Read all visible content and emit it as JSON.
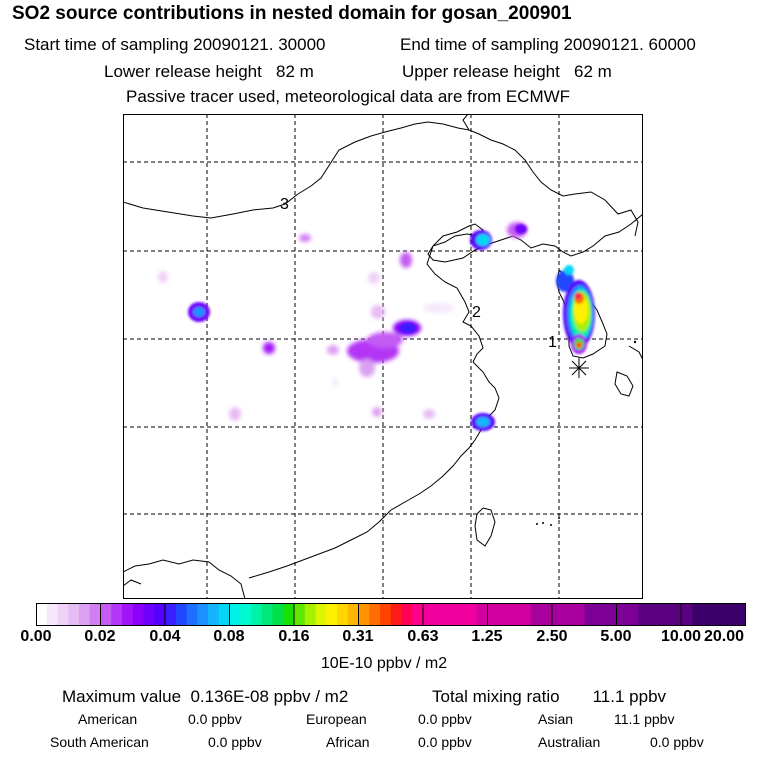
{
  "header": {
    "title": "SO2 source contributions in nested domain for gosan_200901",
    "start_label": "Start time of sampling 20090121. 30000",
    "end_label": "End time of sampling 20090121. 60000",
    "lower_label": "Lower release height   82 m",
    "upper_label": "Upper release height   62 m",
    "note": "Passive tracer used, meteorological data are from ECMWF"
  },
  "map": {
    "markers": [
      {
        "label": "3"
      },
      {
        "label": "2"
      },
      {
        "label": "1"
      }
    ],
    "receptor_symbol": "asterisk"
  },
  "colorbar": {
    "colors": [
      "#ffffff",
      "#f6e8fb",
      "#eed2f8",
      "#e6bcf5",
      "#dba0f2",
      "#d27df2",
      "#c45cf4",
      "#b436f6",
      "#a313f8",
      "#8a00fa",
      "#6f00fc",
      "#5500ff",
      "#3b1fff",
      "#2046ff",
      "#1e6eff",
      "#1d90ff",
      "#16b4ff",
      "#05d6f6",
      "#00f2e6",
      "#00fad0",
      "#00f2a8",
      "#00e87a",
      "#00e048",
      "#18e000",
      "#5ee800",
      "#a6f000",
      "#dcf500",
      "#fff000",
      "#ffd600",
      "#ffb600",
      "#ff9400",
      "#ff6e00",
      "#ff4400",
      "#ff1a1a",
      "#ff0055",
      "#ff008a",
      "#f0009e",
      "#d000a0",
      "#a8009c",
      "#7c0096",
      "#5a0080",
      "#3c006a"
    ],
    "groups": [
      6,
      6,
      6,
      6,
      6,
      6,
      6
    ],
    "ticks": [
      "0.00",
      "0.02",
      "0.04",
      "0.08",
      "0.16",
      "0.31",
      "0.63",
      "1.25",
      "2.50",
      "5.00",
      "10.00",
      "20.00"
    ],
    "units": "10E-10 ppbv / m2"
  },
  "stats": {
    "max_value": "Maximum value  0.136E-08 ppbv / m2",
    "total": "Total mixing ratio       11.1 ppbv",
    "american_label": "American",
    "american_value": "0.0 ppbv",
    "european_label": "European",
    "european_value": "0.0 ppbv",
    "asian_label": "Asian",
    "asian_value": "11.1 ppbv",
    "south_american_label": "South American",
    "south_american_value": "0.0 ppbv",
    "african_label": "African",
    "african_value": "0.0 ppbv",
    "australian_label": "Australian",
    "australian_value": "0.0 ppbv"
  }
}
